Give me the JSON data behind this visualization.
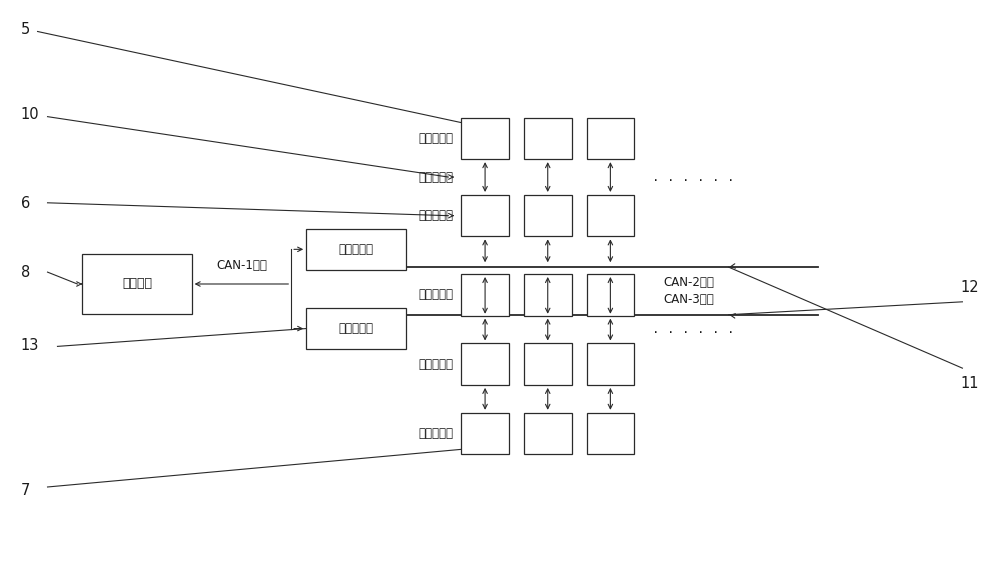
{
  "bg_color": "#ffffff",
  "lc": "#2a2a2a",
  "fc": "#1a1a1a",
  "fs_label": 8.5,
  "fs_num": 10.5,
  "fs_can": 8.5,
  "main_label": "横机主控",
  "comm_label": "通信转接板",
  "can1": "CAN-1通信",
  "can2": "CAN-2通信",
  "can3": "CAN-3通信",
  "lbl_ir": "红外收发板",
  "lbl_flex": "柔性扁平线",
  "lbl_motor": "电机控制板",
  "dots": ". . . . . .",
  "num5": "5",
  "num6": "6",
  "num7": "7",
  "num8": "8",
  "num10": "10",
  "num11": "11",
  "num12": "12",
  "num13": "13"
}
